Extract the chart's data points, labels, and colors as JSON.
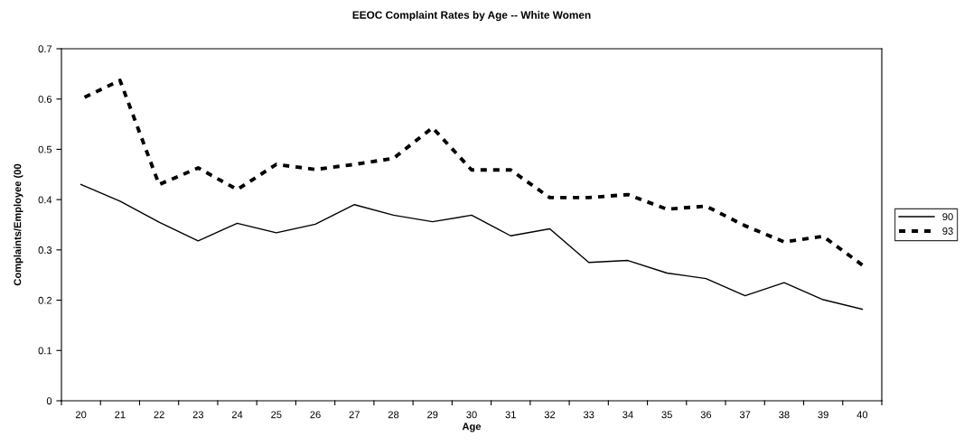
{
  "chart_data": {
    "type": "line",
    "title": "EEOC Complaint Rates by Age -- White Women",
    "xlabel": "Age",
    "ylabel": "Complaints/Employee (00",
    "categories": [
      "20",
      "21",
      "22",
      "23",
      "24",
      "25",
      "26",
      "27",
      "28",
      "29",
      "30",
      "31",
      "32",
      "33",
      "34",
      "35",
      "36",
      "37",
      "38",
      "39",
      "40"
    ],
    "series": [
      {
        "name": "90",
        "color": "#000000",
        "line_style": "solid",
        "values": [
          0.43,
          0.397,
          0.355,
          0.318,
          0.353,
          0.334,
          0.351,
          0.39,
          0.369,
          0.356,
          0.369,
          0.328,
          0.342,
          0.275,
          0.279,
          0.254,
          0.243,
          0.209,
          0.235,
          0.201,
          0.182
        ]
      },
      {
        "name": "93",
        "color": "#000000",
        "line_style": "dashed",
        "values": [
          0.6,
          0.637,
          0.43,
          0.463,
          0.42,
          0.47,
          0.46,
          0.47,
          0.482,
          0.543,
          0.459,
          0.459,
          0.404,
          0.404,
          0.41,
          0.381,
          0.387,
          0.348,
          0.316,
          0.327,
          0.27
        ]
      }
    ],
    "ylim": [
      0,
      0.7
    ],
    "yticks": [
      0,
      0.1,
      0.2,
      0.3,
      0.4,
      0.5,
      0.6,
      0.7
    ],
    "grid": false,
    "legend": "right",
    "marker": "none"
  }
}
